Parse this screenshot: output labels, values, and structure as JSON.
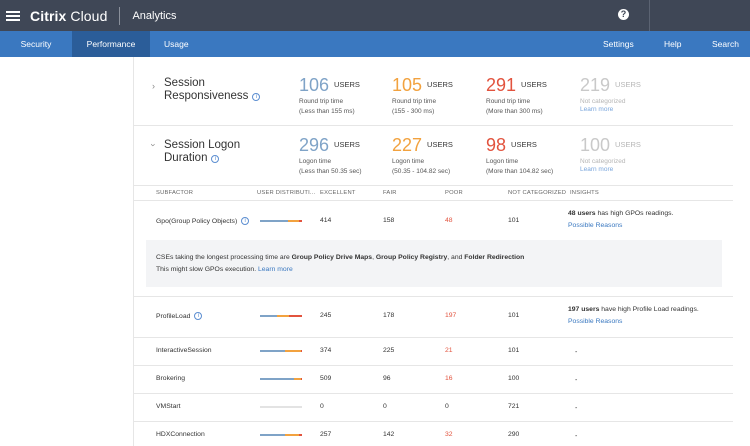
{
  "topbar": {
    "brand_bold": "Citrix",
    "brand_light": " Cloud",
    "product": "Analytics",
    "help_glyph": "?"
  },
  "nav": {
    "tabs": [
      "Security",
      "Performance",
      "Usage"
    ],
    "right": [
      "Settings",
      "Help",
      "Search"
    ]
  },
  "sections": {
    "responsiveness": {
      "title_line1": "Session",
      "title_line2": "Responsiveness",
      "stats": [
        {
          "num": "106",
          "unit": "USERS",
          "l1": "Round trip time",
          "l2": "(Less than 155 ms)"
        },
        {
          "num": "105",
          "unit": "USERS",
          "l1": "Round trip time",
          "l2": "(155 - 300 ms)"
        },
        {
          "num": "291",
          "unit": "USERS",
          "l1": "Round trip time",
          "l2": "(More than 300 ms)"
        },
        {
          "num": "219",
          "unit": "USERS",
          "l1": "Not categorized",
          "l2": "Learn more"
        }
      ]
    },
    "logon": {
      "title_line1": "Session Logon",
      "title_line2": "Duration",
      "stats": [
        {
          "num": "296",
          "unit": "USERS",
          "l1": "Logon time",
          "l2": "(Less than 50.35 sec)"
        },
        {
          "num": "227",
          "unit": "USERS",
          "l1": "Logon time",
          "l2": "(50.35 - 104.82 sec)"
        },
        {
          "num": "98",
          "unit": "USERS",
          "l1": "Logon time",
          "l2": "(More than 104.82 sec)"
        },
        {
          "num": "100",
          "unit": "USERS",
          "l1": "Not categorized",
          "l2": "Learn more"
        }
      ]
    }
  },
  "table": {
    "headers": [
      "SUBFACTOR",
      "USER DISTRIBUTI...",
      "EXCELLENT",
      "FAIR",
      "POOR",
      "NOT CATEGORIZED",
      "INSIGHTS"
    ],
    "rows": [
      {
        "name": "Gpo(Group Policy Objects)",
        "excellent": "414",
        "fair": "158",
        "poor": "48",
        "notcat": "101",
        "insight_bold": "48 users",
        "insight_rest": " has high GPOs readings.",
        "insight_link": "Possible Reasons",
        "dist": {
          "excellent": 414,
          "fair": 158,
          "poor": 48
        }
      },
      {
        "name": "ProfileLoad",
        "excellent": "245",
        "fair": "178",
        "poor": "197",
        "notcat": "101",
        "insight_bold": "197 users",
        "insight_rest": " have high Profile Load readings.",
        "insight_link": "Possible Reasons",
        "dist": {
          "excellent": 245,
          "fair": 178,
          "poor": 197
        }
      },
      {
        "name": "InteractiveSession",
        "excellent": "374",
        "fair": "225",
        "poor": "21",
        "notcat": "101",
        "dash": "-",
        "dist": {
          "excellent": 374,
          "fair": 225,
          "poor": 21
        }
      },
      {
        "name": "Brokering",
        "excellent": "509",
        "fair": "96",
        "poor": "16",
        "notcat": "100",
        "dash": "-",
        "dist": {
          "excellent": 509,
          "fair": 96,
          "poor": 16
        }
      },
      {
        "name": "VMStart",
        "excellent": "0",
        "fair": "0",
        "poor": "0",
        "notcat": "721",
        "dash": "-",
        "dist": {
          "excellent": 0,
          "fair": 0,
          "poor": 0
        }
      },
      {
        "name": "HDXConnection",
        "excellent": "257",
        "fair": "142",
        "poor": "32",
        "notcat": "290",
        "dash": "-",
        "dist": {
          "excellent": 257,
          "fair": 142,
          "poor": 32
        }
      }
    ],
    "note": {
      "pre": "CSEs taking the longest processing time are ",
      "b1": "Group Policy Drive Maps",
      "sep1": ", ",
      "b2": "Group Policy Registry",
      "sep2": ", and ",
      "b3": "Folder Redirection",
      "line2": "This might slow GPOs execution. ",
      "link": "Learn more"
    }
  },
  "colors": {
    "excellent": "#7fa3c7",
    "fair": "#f2a23f",
    "poor": "#e2533e",
    "notcat": "#c9c9c9"
  }
}
